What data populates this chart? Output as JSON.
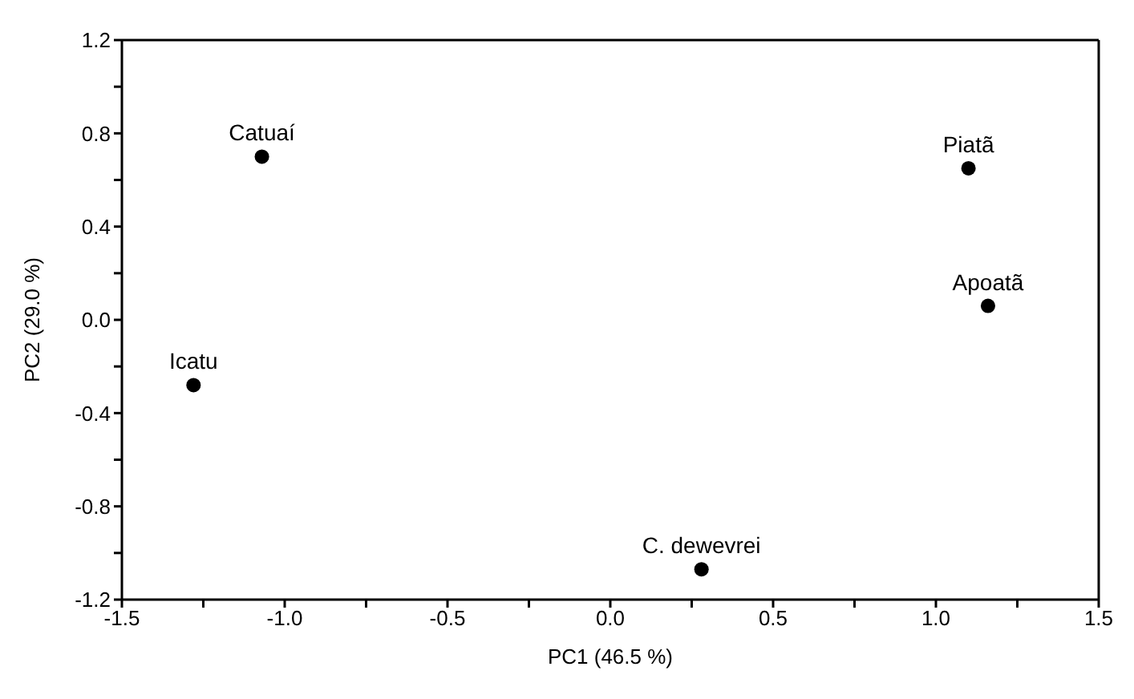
{
  "chart_data": {
    "type": "scatter",
    "xlabel": "PC1 (46.5 %)",
    "ylabel": "PC2 (29.0 %)",
    "x": [
      -1.07,
      -1.28,
      1.1,
      1.16,
      0.28
    ],
    "values": [
      0.7,
      -0.28,
      0.65,
      0.06,
      -1.07
    ],
    "color": "#000000",
    "marker": "circle",
    "grid": false,
    "legend": false,
    "xlim": [
      -1.5,
      1.5
    ],
    "xticks": [
      -1.5,
      {
        "value": -1.25,
        "label": null
      },
      {
        "value": -1,
        "label": "-1.0"
      },
      {
        "value": -0.75,
        "label": null
      },
      -0.5,
      {
        "value": -0.25,
        "label": null
      },
      {
        "value": 0,
        "label": "0.0"
      },
      {
        "value": 0.25,
        "label": null
      },
      0.5,
      {
        "value": 0.75,
        "label": null
      },
      {
        "value": 1,
        "label": "1.0"
      },
      {
        "value": 1.25,
        "label": null
      },
      1.5
    ],
    "ylim": [
      -1.2,
      1.2
    ],
    "yticks": [
      -1.2,
      {
        "value": -1.0,
        "label": null
      },
      -0.8,
      {
        "value": -0.6,
        "label": null
      },
      -0.4,
      {
        "value": -0.2,
        "label": null
      },
      {
        "value": 0,
        "label": "0.0"
      },
      {
        "value": 0.2,
        "label": null
      },
      0.4,
      {
        "value": 0.6,
        "label": null
      },
      0.8,
      {
        "value": 1.0,
        "label": null
      },
      1.2
    ],
    "annotations": [
      {
        "text": "Catuaí",
        "x": -1.07,
        "y": 0.7
      },
      {
        "text": "Icatu",
        "x": -1.28,
        "y": -0.28
      },
      {
        "text": "Piatã",
        "x": 1.1,
        "y": 0.65
      },
      {
        "text": "Apoatã",
        "x": 1.16,
        "y": 0.06
      },
      {
        "text": "C. dewevrei",
        "x": 0.28,
        "y": -1.07
      }
    ]
  }
}
